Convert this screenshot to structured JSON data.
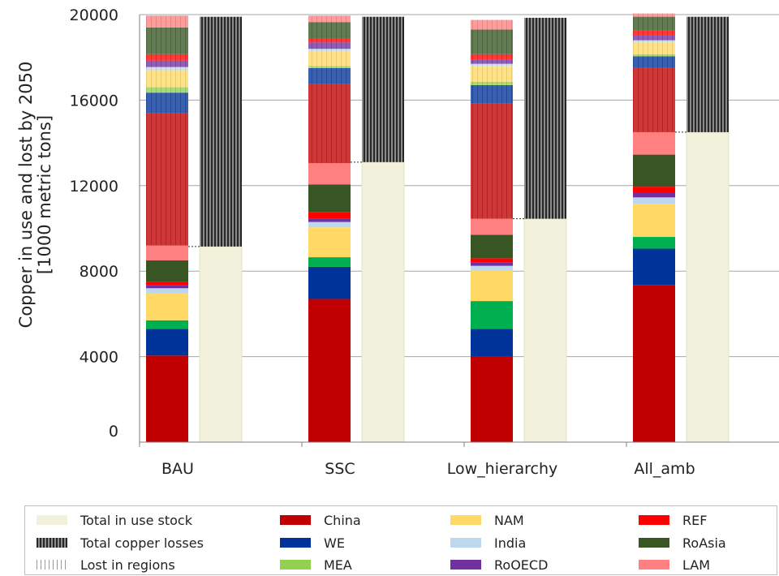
{
  "chart_data": {
    "type": "bar",
    "stacked": true,
    "ylabel": "Copper in use and lost by 2050 [1000 metric tons]",
    "ylim": [
      0,
      20000
    ],
    "yticks": [
      0,
      4000,
      8000,
      12000,
      16000,
      20000
    ],
    "grid": true,
    "categories": [
      "BAU",
      "SSC",
      "Low_hierarchy",
      "All_amb"
    ],
    "region_series": [
      {
        "name": "China",
        "color": "#c00000",
        "values": [
          4050,
          6700,
          4000,
          7350
        ]
      },
      {
        "name": "WE",
        "color": "#003399",
        "values": [
          1250,
          1500,
          1300,
          1700
        ]
      },
      {
        "name": "MEA",
        "color": "#00b050",
        "values": [
          400,
          450,
          1300,
          550
        ]
      },
      {
        "name": "NAM",
        "color": "#ffd966",
        "values": [
          1250,
          1400,
          1450,
          1550
        ]
      },
      {
        "name": "India",
        "color": "#bdd7ee",
        "values": [
          250,
          250,
          200,
          300
        ]
      },
      {
        "name": "RoOECD",
        "color": "#7030a0",
        "values": [
          150,
          150,
          150,
          200
        ]
      },
      {
        "name": "REF",
        "color": "#ff0000",
        "values": [
          150,
          300,
          200,
          300
        ]
      },
      {
        "name": "RoAsia",
        "color": "#375623",
        "values": [
          1000,
          1300,
          1100,
          1500
        ]
      },
      {
        "name": "LAM",
        "color": "#ff8080",
        "values": [
          700,
          1000,
          750,
          1050
        ]
      },
      {
        "name": "China",
        "color": "#c00000",
        "values": [
          6200,
          3700,
          5400,
          3000
        ]
      },
      {
        "name": "WE",
        "color": "#003399",
        "values": [
          950,
          750,
          850,
          550
        ]
      },
      {
        "name": "MEA",
        "color": "#92d050",
        "values": [
          250,
          100,
          150,
          100
        ]
      },
      {
        "name": "NAM",
        "color": "#ffd966",
        "values": [
          800,
          700,
          750,
          550
        ]
      },
      {
        "name": "India",
        "color": "#bdd7ee",
        "values": [
          150,
          100,
          100,
          100
        ]
      },
      {
        "name": "RoOECD",
        "color": "#7030a0",
        "values": [
          300,
          300,
          200,
          250
        ]
      },
      {
        "name": "REF",
        "color": "#ff0000",
        "values": [
          300,
          200,
          250,
          200
        ]
      },
      {
        "name": "RoAsia",
        "color": "#375623",
        "values": [
          1250,
          750,
          1150,
          650
        ]
      },
      {
        "name": "LAM",
        "color": "#ff8080",
        "values": [
          550,
          300,
          450,
          150
        ]
      }
    ],
    "total_series": [
      {
        "name": "Total in use stock",
        "color": "#f2f2dc",
        "values": [
          9150,
          13100,
          10450,
          14500
        ]
      },
      {
        "name": "Total copper losses",
        "color": "#595959",
        "values": [
          10750,
          6800,
          9400,
          5400
        ]
      }
    ]
  },
  "legend": {
    "items": [
      {
        "label": "Total in use stock",
        "color": "#f2f2dc",
        "style": "solid"
      },
      {
        "label": "Total copper losses",
        "color": "#595959",
        "style": "dense-stripes"
      },
      {
        "label": "Lost in regions",
        "color": "#bfbfbf",
        "style": "light-stripes"
      },
      {
        "label": "China",
        "color": "#c00000",
        "style": "solid"
      },
      {
        "label": "WE",
        "color": "#003399",
        "style": "solid"
      },
      {
        "label": "MEA",
        "color": "#92d050",
        "style": "solid"
      },
      {
        "label": "NAM",
        "color": "#ffd966",
        "style": "solid"
      },
      {
        "label": "India",
        "color": "#bdd7ee",
        "style": "solid"
      },
      {
        "label": "RoOECD",
        "color": "#7030a0",
        "style": "solid"
      },
      {
        "label": "REF",
        "color": "#ff0000",
        "style": "solid"
      },
      {
        "label": "RoAsia",
        "color": "#375623",
        "style": "solid"
      },
      {
        "label": "LAM",
        "color": "#ff8080",
        "style": "solid"
      }
    ]
  }
}
